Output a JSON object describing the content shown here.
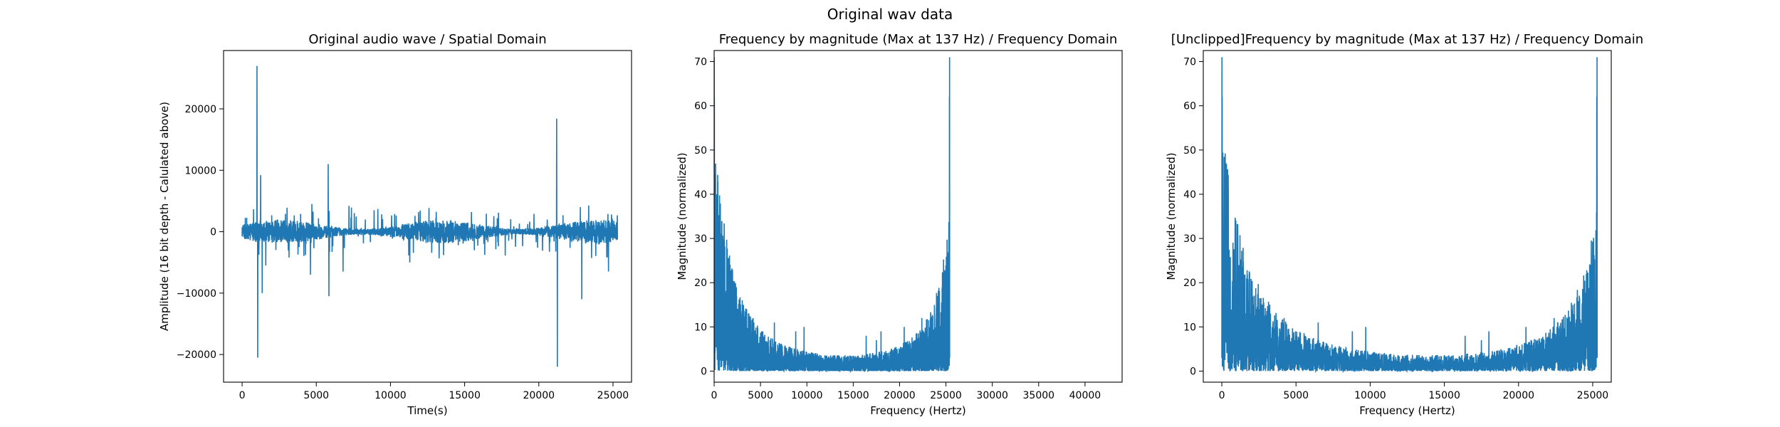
{
  "figure": {
    "suptitle": "Original wav data"
  },
  "chart_data": [
    {
      "type": "line",
      "title": "Original audio wave / Spatial Domain",
      "xlabel": "Time(s)",
      "ylabel": "Amplitude (16 bit depth - Calulated above)",
      "xlim": [
        -1250,
        26250
      ],
      "ylim": [
        -24500,
        29500
      ],
      "xticks": [
        0,
        5000,
        10000,
        15000,
        20000,
        25000
      ],
      "xticklabels": [
        "0",
        "5000",
        "10000",
        "15000",
        "20000",
        "25000"
      ],
      "yticks": [
        -20000,
        -10000,
        0,
        10000,
        20000
      ],
      "yticklabels": [
        "−20000",
        "−10000",
        "0",
        "10000",
        "20000"
      ],
      "color": "#1f77b4",
      "grid": false,
      "signal": {
        "x_range": [
          0,
          25300
        ],
        "baseline_amplitude": 1200,
        "spikes": [
          {
            "x": 1000,
            "y": 27000
          },
          {
            "x": 1050,
            "y": -20500
          },
          {
            "x": 1250,
            "y": 9200
          },
          {
            "x": 1350,
            "y": -10000
          },
          {
            "x": 1600,
            "y": -5500
          },
          {
            "x": 4600,
            "y": -7000
          },
          {
            "x": 4700,
            "y": 4500
          },
          {
            "x": 5800,
            "y": 11000
          },
          {
            "x": 5850,
            "y": -10500
          },
          {
            "x": 6800,
            "y": -6500
          },
          {
            "x": 7200,
            "y": 4200
          },
          {
            "x": 8900,
            "y": 3500
          },
          {
            "x": 11300,
            "y": -5000
          },
          {
            "x": 11900,
            "y": 3200
          },
          {
            "x": 21200,
            "y": 18400
          },
          {
            "x": 21250,
            "y": -22000
          },
          {
            "x": 22900,
            "y": -11000
          },
          {
            "x": 22800,
            "y": 4000
          },
          {
            "x": 24700,
            "y": -6500
          },
          {
            "x": 24900,
            "y": 2800
          }
        ]
      }
    },
    {
      "type": "line",
      "title": "Frequency by magnitude (Max at 137 Hz) / Frequency Domain",
      "xlabel": "Frequency (Hertz)",
      "ylabel": "Magnitude (normalized)",
      "xlim": [
        0,
        44000
      ],
      "ylim": [
        -2.5,
        72.5
      ],
      "xticks": [
        0,
        5000,
        10000,
        15000,
        20000,
        25000,
        30000,
        35000,
        40000
      ],
      "xticklabels": [
        "0",
        "5000",
        "10000",
        "15000",
        "20000",
        "25000",
        "30000",
        "35000",
        "40000"
      ],
      "yticks": [
        0,
        10,
        20,
        30,
        40,
        50,
        60,
        70
      ],
      "yticklabels": [
        "0",
        "10",
        "20",
        "30",
        "40",
        "50",
        "60",
        "70"
      ],
      "color": "#1f77b4",
      "grid": false,
      "spectrum": {
        "x_range": [
          0,
          25400
        ],
        "peak_freq_hz": 137,
        "peak_magnitude": 71,
        "spikes": [
          {
            "x": 2500,
            "y": 14
          },
          {
            "x": 3400,
            "y": 10
          },
          {
            "x": 4200,
            "y": 12
          },
          {
            "x": 6500,
            "y": 11
          },
          {
            "x": 8800,
            "y": 9
          },
          {
            "x": 9700,
            "y": 10
          },
          {
            "x": 16400,
            "y": 8
          },
          {
            "x": 17500,
            "y": 7
          },
          {
            "x": 18000,
            "y": 9
          },
          {
            "x": 20500,
            "y": 10
          },
          {
            "x": 22400,
            "y": 12
          }
        ]
      }
    },
    {
      "type": "line",
      "title": "[Unclipped]Frequency by magnitude (Max at 137 Hz) / Frequency Domain",
      "xlabel": "Frequency (Hertz)",
      "ylabel": "Magnitude (normalized)",
      "xlim": [
        -1250,
        26250
      ],
      "ylim": [
        -2.5,
        72.5
      ],
      "xticks": [
        0,
        5000,
        10000,
        15000,
        20000,
        25000
      ],
      "xticklabels": [
        "0",
        "5000",
        "10000",
        "15000",
        "20000",
        "25000"
      ],
      "yticks": [
        0,
        10,
        20,
        30,
        40,
        50,
        60,
        70
      ],
      "yticklabels": [
        "0",
        "10",
        "20",
        "30",
        "40",
        "50",
        "60",
        "70"
      ],
      "color": "#1f77b4",
      "grid": false,
      "spectrum": {
        "x_range": [
          0,
          25300
        ],
        "peak_freq_hz": 137,
        "peak_magnitude": 71,
        "spikes": [
          {
            "x": 2500,
            "y": 14
          },
          {
            "x": 3400,
            "y": 10
          },
          {
            "x": 4200,
            "y": 12
          },
          {
            "x": 6500,
            "y": 11
          },
          {
            "x": 8800,
            "y": 9
          },
          {
            "x": 9700,
            "y": 10
          },
          {
            "x": 16400,
            "y": 8
          },
          {
            "x": 17500,
            "y": 7
          },
          {
            "x": 18000,
            "y": 9
          },
          {
            "x": 20500,
            "y": 10
          },
          {
            "x": 22400,
            "y": 12
          }
        ]
      }
    }
  ]
}
